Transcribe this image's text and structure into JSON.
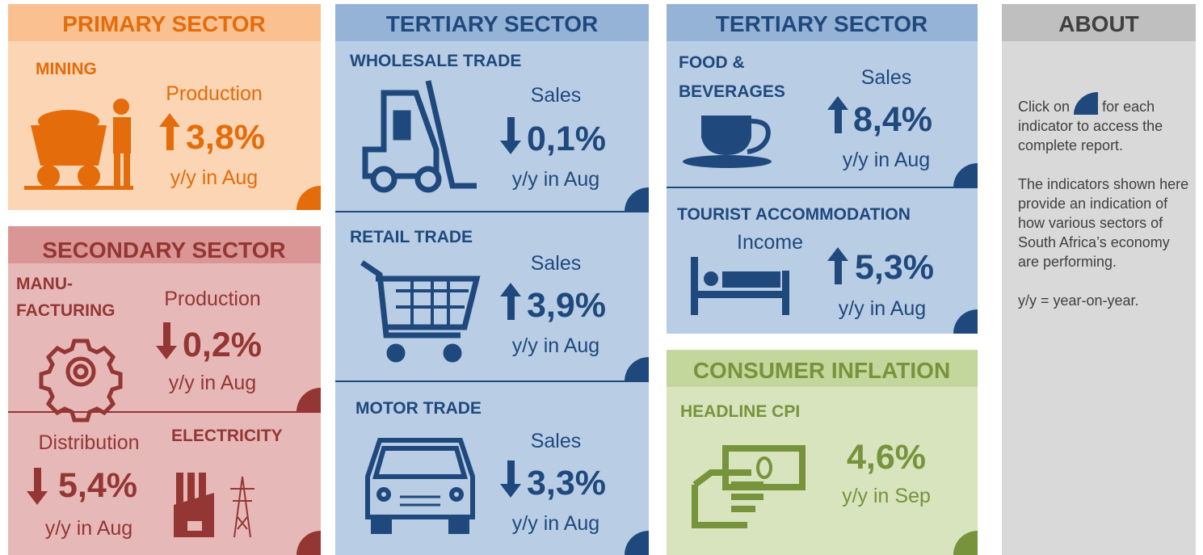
{
  "primary": {
    "header": "PRIMARY SECTOR",
    "name": "MINING",
    "indicator": "Production",
    "change": "3,8%",
    "period": "y/y in Aug"
  },
  "secondary": {
    "header": "SECONDARY SECTOR",
    "manufacturing": {
      "name": [
        "MANU-",
        "FACTURING"
      ],
      "indicator": "Production",
      "change": "0,2%",
      "period": "y/y in Aug"
    },
    "electricity": {
      "name": "ELECTRICITY",
      "indicator": "Distribution",
      "change": "5,4%",
      "period": "y/y in Aug"
    }
  },
  "tertiary_1": {
    "header": "TERTIARY SECTOR",
    "items": [
      {
        "name": "WHOLESALE TRADE",
        "indicator": "Sales",
        "change": "0,1%",
        "period": "y/y in Aug"
      },
      {
        "name": "RETAIL TRADE",
        "indicator": "Sales",
        "change": "3,9%",
        "period": "y/y in Aug"
      },
      {
        "name": "MOTOR TRADE",
        "indicator": "Sales",
        "change": "3,3%",
        "period": "y/y in Aug"
      }
    ]
  },
  "tertiary_2": {
    "header": "TERTIARY SECTOR",
    "items": [
      {
        "name": [
          "FOOD &",
          "BEVERAGES"
        ],
        "indicator": "Sales",
        "change": "8,4%",
        "period": "y/y in Aug"
      },
      {
        "name": "TOURIST  ACCOMMODATION",
        "indicator": "Income",
        "change": "5,3%",
        "period": "y/y in Aug"
      }
    ]
  },
  "inflation": {
    "header": "CONSUMER INFLATION",
    "name": "HEADLINE CPI",
    "change": "4,6%",
    "period": "y/y in Sep"
  },
  "about": {
    "header": "ABOUT",
    "click_before": "Click on",
    "click_after": "for each indicator to access the complete report.",
    "paragraphs": [
      "The indicators shown here provide an indication of how various sectors of South Africa’s economy are performing.",
      "y/y = year-on-year."
    ]
  }
}
